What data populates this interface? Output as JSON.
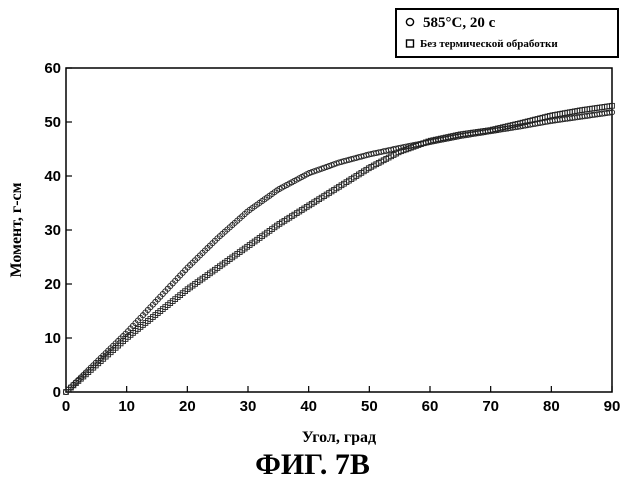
{
  "figure_caption": "ФИГ. 7В",
  "chart_data": {
    "type": "scatter",
    "xlabel": "Угол, град",
    "ylabel": "Момент, г-см",
    "xlim": [
      0,
      90
    ],
    "ylim": [
      0,
      60
    ],
    "xticks": [
      0,
      10,
      20,
      30,
      40,
      50,
      60,
      70,
      80,
      90
    ],
    "yticks": [
      0,
      10,
      20,
      30,
      40,
      50,
      60
    ],
    "grid": false,
    "legend_position": "top-right",
    "series": [
      {
        "name": "585°C, 20 с",
        "marker": "circle",
        "x": [
          0,
          5,
          10,
          15,
          20,
          25,
          30,
          35,
          40,
          45,
          50,
          55,
          60,
          65,
          70,
          75,
          80,
          85,
          90
        ],
        "y": [
          0,
          5.5,
          11,
          17,
          23,
          28.5,
          33.5,
          37.5,
          40.5,
          42.5,
          44,
          45.2,
          46.3,
          47.4,
          48.3,
          49.2,
          50.2,
          51,
          51.8
        ]
      },
      {
        "name": "Без термической обработки",
        "marker": "square",
        "x": [
          0,
          5,
          10,
          15,
          20,
          25,
          30,
          35,
          40,
          45,
          50,
          55,
          60,
          65,
          70,
          75,
          80,
          85,
          90
        ],
        "y": [
          0,
          5,
          10,
          14.5,
          19,
          23,
          27,
          31,
          34.5,
          38,
          41.5,
          44.5,
          46.5,
          47.7,
          48.5,
          49.8,
          51.2,
          52.2,
          53
        ]
      }
    ]
  }
}
